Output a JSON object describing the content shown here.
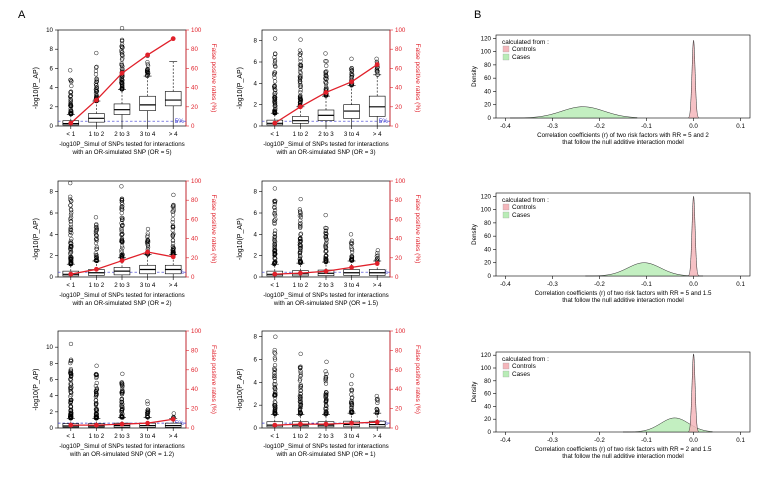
{
  "figure": {
    "panel_a_label": "A",
    "panel_b_label": "B"
  },
  "chart_data": [
    {
      "type": "box",
      "panel": "A",
      "ylabel": "-log10(P_AP)",
      "y2label": "False positive rates (%)",
      "xlabel_line1": "-log10P_Simul of SNPs tested for interactions",
      "xlabel_line2": "with an OR-simulated SNP (OR = 5)",
      "categories": [
        "< 1",
        "1 to 2",
        "2 to 3",
        "3 to 4",
        "> 4"
      ],
      "ylim": [
        0,
        10
      ],
      "yticks": [
        0,
        2,
        4,
        6,
        8,
        10
      ],
      "y2lim": [
        0,
        100
      ],
      "y2ticks": [
        0,
        20,
        40,
        60,
        80,
        100
      ],
      "fpr_reference_label": "5%",
      "box_median": [
        0.25,
        0.8,
        1.7,
        2.2,
        2.7
      ],
      "box_q1": [
        0.1,
        0.4,
        1.2,
        1.6,
        2.1
      ],
      "box_q3": [
        0.55,
        1.3,
        2.3,
        3.1,
        3.6
      ],
      "whisker_high": [
        1.2,
        2.6,
        3.8,
        5.2,
        6.7
      ],
      "outliers_max": [
        5.8,
        7.6,
        10.2,
        7.3,
        0
      ],
      "false_positive_rate": [
        3,
        27,
        55,
        74,
        91
      ]
    },
    {
      "type": "box",
      "panel": "A",
      "ylabel": "-log10(P_AP)",
      "y2label": "False positive rates (%)",
      "xlabel_line1": "-log10P_Simul of SNPs tested for interactions",
      "xlabel_line2": "with an OR-simulated SNP (OR = 3)",
      "categories": [
        "< 1",
        "1 to 2",
        "2 to 3",
        "3 to 4",
        "> 4"
      ],
      "ylim": [
        0,
        9
      ],
      "yticks": [
        0,
        2,
        4,
        6,
        8
      ],
      "y2lim": [
        0,
        100
      ],
      "y2ticks": [
        0,
        20,
        40,
        60,
        80,
        100
      ],
      "fpr_reference_label": "5%",
      "box_median": [
        0.25,
        0.5,
        1.0,
        1.4,
        1.8
      ],
      "box_q1": [
        0.1,
        0.25,
        0.5,
        0.7,
        0.9
      ],
      "box_q3": [
        0.55,
        0.9,
        1.5,
        2.0,
        2.8
      ],
      "whisker_high": [
        1.2,
        1.8,
        2.8,
        3.8,
        4.8
      ],
      "outliers_max": [
        8.2,
        8.1,
        6.8,
        6.3,
        6.3
      ],
      "false_positive_rate": [
        3,
        20,
        35,
        46,
        64
      ]
    },
    {
      "type": "box",
      "panel": "A",
      "ylabel": "-log10(P_AP)",
      "y2label": "False positive rates (%)",
      "xlabel_line1": "-log10P_Simul of SNPs tested for interactions",
      "xlabel_line2": "with an OR-simulated SNP (OR = 2)",
      "categories": [
        "< 1",
        "1 to 2",
        "2 to 3",
        "3 to 4",
        "> 4"
      ],
      "ylim": [
        0,
        9
      ],
      "yticks": [
        0,
        2,
        4,
        6,
        8
      ],
      "y2lim": [
        0,
        100
      ],
      "y2ticks": [
        0,
        20,
        40,
        60,
        80,
        100
      ],
      "fpr_reference_label": "5%",
      "box_median": [
        0.25,
        0.4,
        0.55,
        0.7,
        0.7
      ],
      "box_q1": [
        0.1,
        0.15,
        0.2,
        0.3,
        0.3
      ],
      "box_q3": [
        0.55,
        0.7,
        0.9,
        1.1,
        1.1
      ],
      "whisker_high": [
        1.2,
        1.5,
        1.8,
        2.1,
        2.1
      ],
      "outliers_max": [
        8.8,
        5.6,
        8.5,
        4.5,
        7.7
      ],
      "false_positive_rate": [
        3,
        8,
        17,
        26,
        21
      ]
    },
    {
      "type": "box",
      "panel": "A",
      "ylabel": "-log10(P_AP)",
      "y2label": "False positive rates (%)",
      "xlabel_line1": "-log10P_Simul of SNPs tested for interactions",
      "xlabel_line2": "with an OR-simulated SNP (OR = 1.5)",
      "categories": [
        "< 1",
        "1 to 2",
        "2 to 3",
        "3 to 4",
        "> 4"
      ],
      "ylim": [
        0,
        9
      ],
      "yticks": [
        0,
        2,
        4,
        6,
        8
      ],
      "y2lim": [
        0,
        100
      ],
      "y2ticks": [
        0,
        20,
        40,
        60,
        80,
        100
      ],
      "fpr_reference_label": "5%",
      "box_median": [
        0.25,
        0.3,
        0.35,
        0.4,
        0.4
      ],
      "box_q1": [
        0.1,
        0.1,
        0.12,
        0.15,
        0.15
      ],
      "box_q3": [
        0.55,
        0.6,
        0.65,
        0.7,
        0.7
      ],
      "whisker_high": [
        1.2,
        1.3,
        1.4,
        1.5,
        1.5
      ],
      "outliers_max": [
        8.3,
        7.3,
        5.8,
        4.0,
        2.5
      ],
      "false_positive_rate": [
        3,
        4,
        6,
        10,
        14
      ]
    },
    {
      "type": "box",
      "panel": "A",
      "ylabel": "-log10(P_AP)",
      "y2label": "False positive rates (%)",
      "xlabel_line1": "-log10P_Simul of SNPs tested for interactions",
      "xlabel_line2": "with an OR-simulated SNP (OR = 1.2)",
      "categories": [
        "< 1",
        "1 to 2",
        "2 to 3",
        "3 to 4",
        "> 4"
      ],
      "ylim": [
        0,
        12
      ],
      "yticks": [
        0,
        2,
        4,
        6,
        8,
        10
      ],
      "y2lim": [
        0,
        100
      ],
      "y2ticks": [
        0,
        20,
        40,
        60,
        80,
        100
      ],
      "fpr_reference_label": "5%",
      "box_median": [
        0.25,
        0.25,
        0.3,
        0.3,
        0.3
      ],
      "box_q1": [
        0.1,
        0.1,
        0.1,
        0.1,
        0.1
      ],
      "box_q3": [
        0.55,
        0.55,
        0.6,
        0.6,
        0.6
      ],
      "whisker_high": [
        1.2,
        1.2,
        1.3,
        1.3,
        1.2
      ],
      "outliers_max": [
        10.4,
        7.7,
        6.7,
        3.3,
        1.8
      ],
      "false_positive_rate": [
        3,
        3,
        4,
        5,
        9
      ]
    },
    {
      "type": "box",
      "panel": "A",
      "ylabel": "-log10(P_AP)",
      "y2label": "False positive rates (%)",
      "xlabel_line1": "-log10P_Simul of SNPs tested for interactions",
      "xlabel_line2": "with an OR-simulated SNP (OR = 1)",
      "categories": [
        "< 1",
        "1 to 2",
        "2 to 3",
        "3 to 4",
        "> 4"
      ],
      "ylim": [
        0,
        8.5
      ],
      "yticks": [
        0,
        2,
        4,
        6,
        8
      ],
      "y2lim": [
        0,
        100
      ],
      "y2ticks": [
        0,
        20,
        40,
        60,
        80,
        100
      ],
      "fpr_reference_label": "5%",
      "box_median": [
        0.25,
        0.25,
        0.25,
        0.3,
        0.3
      ],
      "box_q1": [
        0.1,
        0.1,
        0.1,
        0.1,
        0.1
      ],
      "box_q3": [
        0.55,
        0.55,
        0.55,
        0.6,
        0.6
      ],
      "whisker_high": [
        1.2,
        1.2,
        1.2,
        1.3,
        1.3
      ],
      "outliers_max": [
        8.0,
        6.5,
        5.8,
        4.6,
        2.8
      ],
      "false_positive_rate": [
        3,
        4,
        4,
        5,
        6
      ]
    },
    {
      "type": "density",
      "panel": "B",
      "ylabel": "Density",
      "xlabel_line1": "Correlation coefficients (r) of two risk factors with RR = 5 and 2",
      "xlabel_line2": "that follow the null additive interaction model",
      "legend_title": "calculated from :",
      "legend_position": "top-left",
      "xlim": [
        -0.42,
        0.12
      ],
      "xticks": [
        -0.4,
        -0.3,
        -0.2,
        -0.1,
        0.0,
        0.1
      ],
      "ylim": [
        0,
        125
      ],
      "yticks": [
        0,
        20,
        40,
        60,
        80,
        100,
        120
      ],
      "series": [
        {
          "name": "Controls",
          "color": "#f4b6bb",
          "center": 0.0,
          "sd": 0.0033,
          "peak": 117,
          "range": [
            -0.01,
            0.01
          ]
        },
        {
          "name": "Cases",
          "color": "#b8ecb6",
          "center": -0.235,
          "sd": 0.045,
          "peak": 17,
          "range": [
            -0.39,
            -0.12
          ]
        }
      ]
    },
    {
      "type": "density",
      "panel": "B",
      "ylabel": "Density",
      "xlabel_line1": "Correlation coefficients (r) of two risk factors with RR = 5 and 1.5",
      "xlabel_line2": "that follow the null additive interaction model",
      "legend_title": "calculated from :",
      "legend_position": "top-left",
      "xlim": [
        -0.42,
        0.12
      ],
      "xticks": [
        -0.4,
        -0.3,
        -0.2,
        -0.1,
        0.0,
        0.1
      ],
      "ylim": [
        0,
        125
      ],
      "yticks": [
        0,
        20,
        40,
        60,
        80,
        100,
        120
      ],
      "series": [
        {
          "name": "Controls",
          "color": "#f4b6bb",
          "center": 0.0,
          "sd": 0.0033,
          "peak": 120,
          "range": [
            -0.01,
            0.01
          ]
        },
        {
          "name": "Cases",
          "color": "#b8ecb6",
          "center": -0.105,
          "sd": 0.035,
          "peak": 20,
          "range": [
            -0.23,
            0.02
          ]
        }
      ]
    },
    {
      "type": "density",
      "panel": "B",
      "ylabel": "Density",
      "xlabel_line1": "Correlation coefficients (r) of two risk factors with RR = 2 and 1.5",
      "xlabel_line2": "that follow the null additive interaction model",
      "legend_title": "calculated from :",
      "legend_position": "top-left",
      "xlim": [
        -0.42,
        0.12
      ],
      "xticks": [
        -0.4,
        -0.3,
        -0.2,
        -0.1,
        0.0,
        0.1
      ],
      "ylim": [
        0,
        125
      ],
      "yticks": [
        0,
        20,
        40,
        60,
        80,
        100,
        120
      ],
      "series": [
        {
          "name": "Controls",
          "color": "#f4b6bb",
          "center": 0.0,
          "sd": 0.0033,
          "peak": 122,
          "range": [
            -0.01,
            0.01
          ]
        },
        {
          "name": "Cases",
          "color": "#b8ecb6",
          "center": -0.04,
          "sd": 0.03,
          "peak": 22,
          "range": [
            -0.15,
            0.04
          ]
        }
      ]
    }
  ]
}
